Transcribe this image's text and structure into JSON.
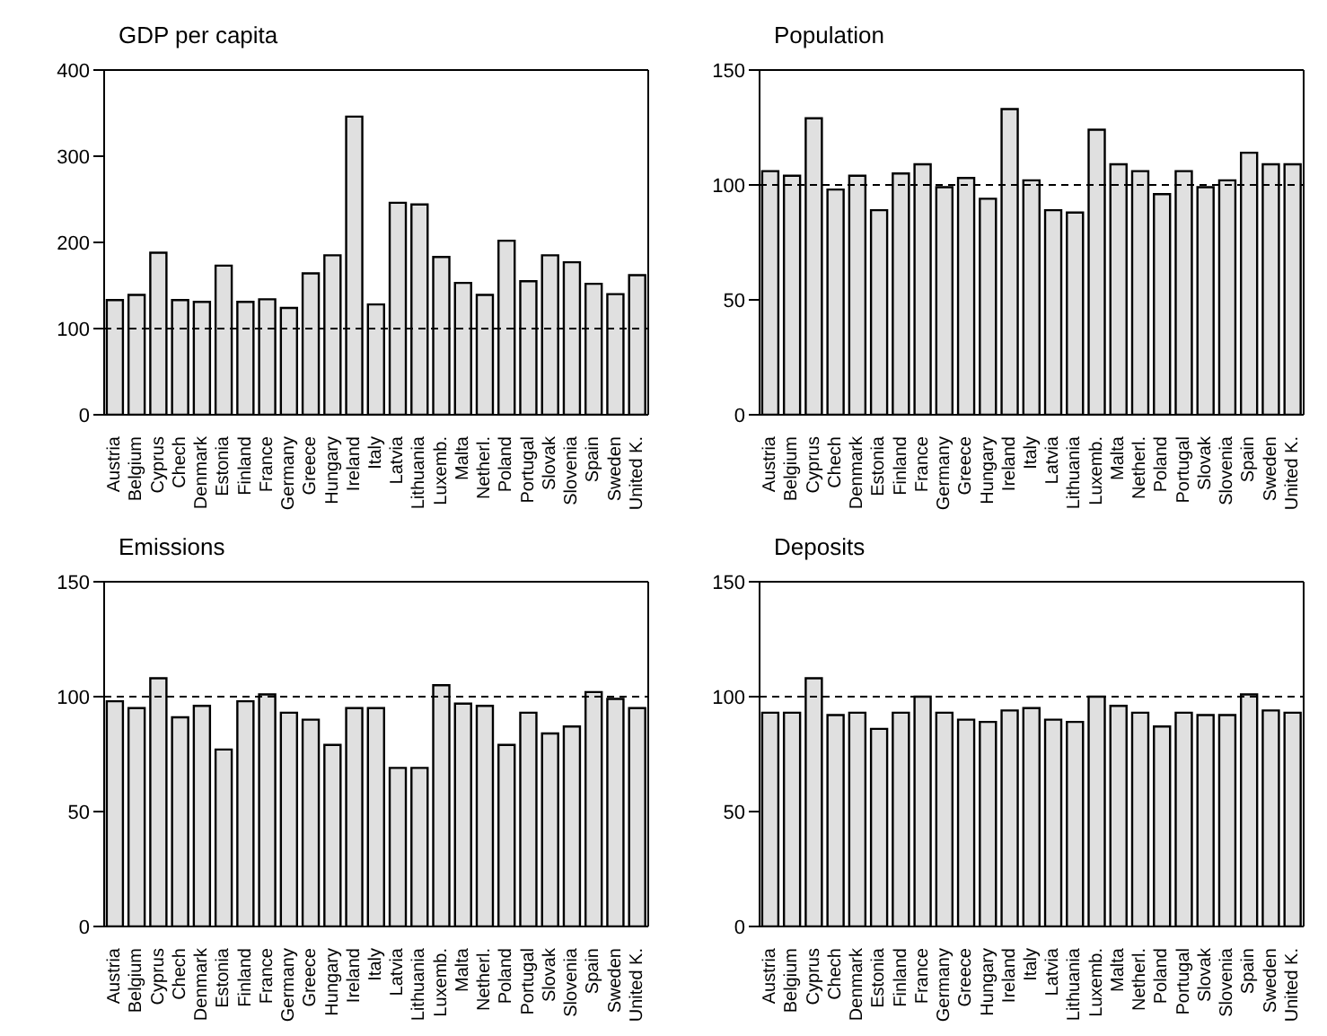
{
  "chart_data": [
    {
      "type": "bar",
      "title": "GDP per capita",
      "categories": [
        "Austria",
        "Belgium",
        "Cyprus",
        "Chech",
        "Denmark",
        "Estonia",
        "Finland",
        "France",
        "Germany",
        "Greece",
        "Hungary",
        "Ireland",
        "Italy",
        "Latvia",
        "Lithuania",
        "Luxemb.",
        "Malta",
        "Netherl.",
        "Poland",
        "Portugal",
        "Slovak",
        "Slovenia",
        "Spain",
        "Sweden",
        "United K."
      ],
      "ylim": [
        0,
        400
      ],
      "yticks": [
        0,
        100,
        200,
        300,
        400
      ],
      "ref_lines": [
        {
          "axis": "y",
          "value": 100,
          "line_style": "dashed",
          "color": "#000000"
        }
      ],
      "series": [
        {
          "color": "#e0e0e0",
          "values": [
            133,
            139,
            188,
            133,
            131,
            173,
            131,
            134,
            124,
            164,
            185,
            346,
            128,
            246,
            244,
            183,
            153,
            139,
            202,
            155,
            185,
            177,
            152,
            140,
            162
          ]
        }
      ]
    },
    {
      "type": "bar",
      "title": "Population",
      "categories": [
        "Austria",
        "Belgium",
        "Cyprus",
        "Chech",
        "Denmark",
        "Estonia",
        "Finland",
        "France",
        "Germany",
        "Greece",
        "Hungary",
        "Ireland",
        "Italy",
        "Latvia",
        "Lithuania",
        "Luxemb.",
        "Malta",
        "Netherl.",
        "Poland",
        "Portugal",
        "Slovak",
        "Slovenia",
        "Spain",
        "Sweden",
        "United K."
      ],
      "ylim": [
        0,
        150
      ],
      "yticks": [
        0,
        50,
        100,
        150
      ],
      "ref_lines": [
        {
          "axis": "y",
          "value": 100,
          "line_style": "dashed",
          "color": "#000000"
        }
      ],
      "series": [
        {
          "color": "#e0e0e0",
          "values": [
            106,
            104,
            129,
            98,
            104,
            89,
            105,
            109,
            99,
            103,
            94,
            133,
            102,
            89,
            88,
            124,
            109,
            106,
            96,
            106,
            99,
            102,
            114,
            109,
            109
          ]
        }
      ]
    },
    {
      "type": "bar",
      "title": "Emissions",
      "categories": [
        "Austria",
        "Belgium",
        "Cyprus",
        "Chech",
        "Denmark",
        "Estonia",
        "Finland",
        "France",
        "Germany",
        "Greece",
        "Hungary",
        "Ireland",
        "Italy",
        "Latvia",
        "Lithuania",
        "Luxemb.",
        "Malta",
        "Netherl.",
        "Poland",
        "Portugal",
        "Slovak",
        "Slovenia",
        "Spain",
        "Sweden",
        "United K."
      ],
      "ylim": [
        0,
        150
      ],
      "yticks": [
        0,
        50,
        100,
        150
      ],
      "ref_lines": [
        {
          "axis": "y",
          "value": 100,
          "line_style": "dashed",
          "color": "#000000"
        }
      ],
      "series": [
        {
          "color": "#e0e0e0",
          "values": [
            98,
            95,
            108,
            91,
            96,
            77,
            98,
            101,
            93,
            90,
            79,
            95,
            95,
            69,
            69,
            105,
            97,
            96,
            79,
            93,
            84,
            87,
            102,
            99,
            95
          ]
        }
      ]
    },
    {
      "type": "bar",
      "title": "Deposits",
      "categories": [
        "Austria",
        "Belgium",
        "Cyprus",
        "Chech",
        "Denmark",
        "Estonia",
        "Finland",
        "France",
        "Germany",
        "Greece",
        "Hungary",
        "Ireland",
        "Italy",
        "Latvia",
        "Lithuania",
        "Luxemb.",
        "Malta",
        "Netherl.",
        "Poland",
        "Portugal",
        "Slovak",
        "Slovenia",
        "Spain",
        "Sweden",
        "United K."
      ],
      "ylim": [
        0,
        150
      ],
      "yticks": [
        0,
        50,
        100,
        150
      ],
      "ref_lines": [
        {
          "axis": "y",
          "value": 100,
          "line_style": "dashed",
          "color": "#000000"
        }
      ],
      "series": [
        {
          "color": "#e0e0e0",
          "values": [
            93,
            93,
            108,
            92,
            93,
            86,
            93,
            100,
            93,
            90,
            89,
            94,
            95,
            90,
            89,
            100,
            96,
            93,
            87,
            93,
            92,
            92,
            101,
            94,
            93
          ]
        }
      ]
    }
  ]
}
